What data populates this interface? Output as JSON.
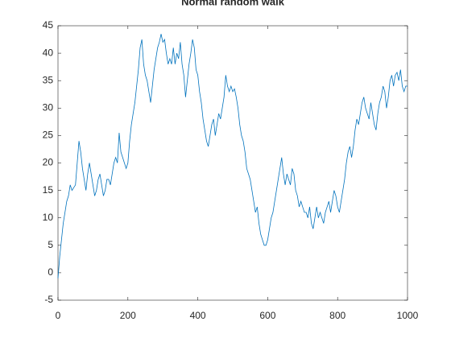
{
  "chart_data": {
    "type": "line",
    "title": "Normal random walk",
    "x": [
      0,
      5,
      10,
      15,
      20,
      25,
      30,
      35,
      40,
      45,
      50,
      55,
      60,
      65,
      70,
      75,
      80,
      85,
      90,
      95,
      100,
      105,
      110,
      115,
      120,
      125,
      130,
      135,
      140,
      145,
      150,
      155,
      160,
      165,
      170,
      175,
      180,
      185,
      190,
      195,
      200,
      205,
      210,
      215,
      220,
      225,
      230,
      235,
      240,
      245,
      250,
      255,
      260,
      265,
      270,
      275,
      280,
      285,
      290,
      295,
      300,
      305,
      310,
      315,
      320,
      325,
      330,
      335,
      340,
      345,
      350,
      355,
      360,
      365,
      370,
      375,
      380,
      385,
      390,
      395,
      400,
      405,
      410,
      415,
      420,
      425,
      430,
      435,
      440,
      445,
      450,
      455,
      460,
      465,
      470,
      475,
      480,
      485,
      490,
      495,
      500,
      505,
      510,
      515,
      520,
      525,
      530,
      535,
      540,
      545,
      550,
      555,
      560,
      565,
      570,
      575,
      580,
      585,
      590,
      595,
      600,
      605,
      610,
      615,
      620,
      625,
      630,
      635,
      640,
      645,
      650,
      655,
      660,
      665,
      670,
      675,
      680,
      685,
      690,
      695,
      700,
      705,
      710,
      715,
      720,
      725,
      730,
      735,
      740,
      745,
      750,
      755,
      760,
      765,
      770,
      775,
      780,
      785,
      790,
      795,
      800,
      805,
      810,
      815,
      820,
      825,
      830,
      835,
      840,
      845,
      850,
      855,
      860,
      865,
      870,
      875,
      880,
      885,
      890,
      895,
      900,
      905,
      910,
      915,
      920,
      925,
      930,
      935,
      940,
      945,
      950,
      955,
      960,
      965,
      970,
      975,
      980,
      985,
      990,
      995,
      1000
    ],
    "series": [
      {
        "color": "#0072bd",
        "values": [
          -1,
          3,
          6,
          9,
          11,
          13,
          14,
          16,
          15,
          15.5,
          16,
          20,
          24,
          22,
          19,
          17,
          15,
          18,
          20,
          18,
          16,
          14,
          15,
          17,
          18,
          16,
          14,
          15,
          17,
          17,
          16,
          18,
          20,
          21,
          20,
          25.5,
          22,
          21,
          20,
          19,
          20,
          24,
          27,
          29,
          31,
          34,
          37,
          41,
          42.5,
          38,
          36,
          35,
          33,
          31,
          34,
          37,
          39,
          41,
          42,
          43.5,
          42,
          42.5,
          40,
          38,
          39,
          38,
          41,
          38,
          40,
          39,
          42,
          38,
          36,
          32,
          35,
          38,
          40,
          42.5,
          41,
          37,
          36,
          33,
          31,
          28,
          26,
          24,
          23,
          25,
          27,
          28,
          25,
          27,
          29,
          28,
          30,
          32,
          36,
          34,
          33,
          34,
          33,
          33.5,
          32,
          30,
          27,
          25,
          24,
          22,
          19,
          18,
          17,
          15,
          13,
          11,
          12,
          9,
          7,
          6,
          5,
          5,
          6,
          8,
          10,
          11,
          13,
          15,
          17,
          19,
          21,
          18,
          16,
          18,
          17,
          16,
          19,
          18,
          15,
          14,
          12,
          13,
          12,
          11,
          11,
          10,
          12,
          9,
          8,
          10,
          12,
          10,
          11,
          10,
          9,
          11,
          12,
          13,
          11,
          13,
          15,
          14,
          12,
          11,
          13,
          15,
          17,
          20,
          22,
          23,
          21,
          23,
          26,
          28,
          27,
          29,
          31,
          32,
          30,
          29,
          28,
          31,
          29,
          27,
          26,
          29,
          31,
          32,
          34,
          33,
          30,
          32,
          35,
          36,
          34,
          36,
          36.5,
          35,
          37,
          34,
          33,
          34,
          34
        ]
      }
    ],
    "xlim": [
      0,
      1000
    ],
    "xticks": [
      0,
      200,
      400,
      600,
      800,
      1000
    ],
    "ylim": [
      -5,
      45
    ],
    "yticks": [
      -5,
      0,
      5,
      10,
      15,
      20,
      25,
      30,
      35,
      40,
      45
    ]
  }
}
